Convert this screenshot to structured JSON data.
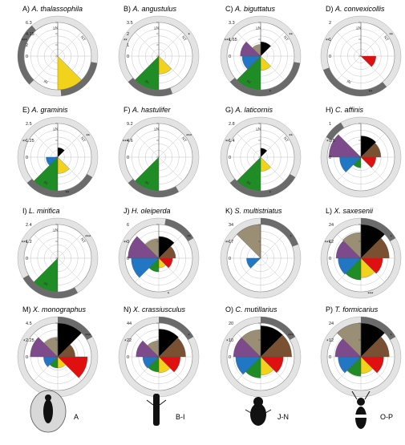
{
  "figure": {
    "legend_groups": [
      {
        "label": "A",
        "icon": "ant-on-bark-icon"
      },
      {
        "label": "B-I",
        "icon": "elongate-beetle-icon"
      },
      {
        "label": "J-N",
        "icon": "bark-beetle-icon"
      },
      {
        "label": "O-P",
        "icon": "checkered-beetle-icon"
      }
    ]
  },
  "colors": {
    "c1": "#000000",
    "c2": "#7a5032",
    "c3": "#e01010",
    "c4": "#f2d21a",
    "c5": "#1f8c26",
    "c6": "#2277c4",
    "c7": "#7d4a8c",
    "c8": "#9a8e74",
    "ring_light": "#e3e3e3",
    "ring_dark": "#6b6b6b"
  },
  "chart_data": [
    {
      "type": "rose",
      "letter": "A)",
      "species": "A. thalassophila",
      "ticks": [
        "6.3",
        "4.15",
        "2",
        "0"
      ],
      "max": 6.3,
      "values": [
        0,
        0,
        0,
        6.3,
        0,
        0,
        0,
        0
      ],
      "sector_labels": [
        "NT",
        "NT",
        "IN"
      ],
      "stars": [
        "***"
      ],
      "dark_arcs": [
        [
          100,
          175
        ],
        [
          225,
          320
        ]
      ]
    },
    {
      "type": "rose",
      "letter": "B)",
      "species": "A. angustulus",
      "ticks": [
        "3.5",
        "2",
        "1",
        "0"
      ],
      "max": 3.5,
      "values": [
        0,
        0,
        0,
        1.0,
        3.5,
        0,
        0,
        0
      ],
      "sector_labels": [
        "NT",
        "NT",
        "IN"
      ],
      "stars": [
        "**",
        "*"
      ],
      "dark_arcs": [
        [
          160,
          230
        ]
      ]
    },
    {
      "type": "rose",
      "letter": "C)",
      "species": "A. biguttatus",
      "ticks": [
        "3.3",
        "1.65",
        "0"
      ],
      "max": 3.3,
      "values": [
        0.6,
        0,
        0,
        0.6,
        3.3,
        1.0,
        1.2,
        0.4
      ],
      "sector_labels": [
        "NT",
        "NT",
        "IN"
      ],
      "stars": [
        "***",
        "**",
        "*"
      ],
      "dark_arcs": [
        [
          100,
          230
        ]
      ]
    },
    {
      "type": "rose",
      "letter": "D)",
      "species": "A. convexicollis",
      "ticks": [
        "2",
        "1",
        "0"
      ],
      "max": 2,
      "values": [
        0,
        0,
        0.4,
        0,
        0,
        0,
        0,
        0
      ],
      "sector_labels": [
        "NT",
        "NT",
        "IN"
      ],
      "stars": [
        "**",
        "**",
        "**"
      ],
      "dark_arcs": [
        [
          140,
          250
        ]
      ]
    },
    {
      "type": "rose",
      "letter": "E)",
      "species": "A. graminis",
      "ticks": [
        "2.5",
        "1.25",
        "0"
      ],
      "max": 2.5,
      "values": [
        0.2,
        0,
        0,
        0.6,
        2.5,
        0.3,
        0,
        0
      ],
      "sector_labels": [
        "NT",
        "NT",
        "IN"
      ],
      "stars": [
        "**",
        "**",
        "**"
      ],
      "dark_arcs": [
        [
          120,
          230
        ]
      ]
    },
    {
      "type": "rose",
      "letter": "F)",
      "species": "A. hastulifer",
      "ticks": [
        "9.2",
        "4.6",
        "0"
      ],
      "max": 9.2,
      "values": [
        0,
        0,
        0,
        0,
        9.2,
        0,
        0,
        0
      ],
      "sector_labels": [
        "NT",
        "NT",
        "IN"
      ],
      "stars": [
        "***",
        "***"
      ],
      "dark_arcs": [
        [
          150,
          230
        ]
      ]
    },
    {
      "type": "rose",
      "letter": "G)",
      "species": "A. laticornis",
      "ticks": [
        "2.8",
        "1.4",
        "0"
      ],
      "max": 2.8,
      "values": [
        0.2,
        0,
        0,
        0.5,
        2.8,
        0,
        0,
        0
      ],
      "sector_labels": [
        "NT",
        "NT",
        "IN"
      ],
      "stars": [
        "**",
        "**",
        "*"
      ],
      "dark_arcs": [
        [
          120,
          230
        ]
      ]
    },
    {
      "type": "rose",
      "letter": "H)",
      "species": "C. affinis",
      "ticks": [
        "1",
        "0.5",
        "0"
      ],
      "max": 1,
      "values": [
        0.4,
        0.35,
        0.2,
        0,
        0.1,
        0.4,
        0.9,
        0
      ],
      "sector_labels": [],
      "stars": [
        "*"
      ],
      "dark_arcs": [
        [
          300,
          330
        ]
      ]
    },
    {
      "type": "rose",
      "letter": "I)",
      "species": "L. mirifica",
      "ticks": [
        "2.4",
        "1.2",
        "0"
      ],
      "max": 2.4,
      "values": [
        0,
        0,
        0,
        0,
        2.4,
        0,
        0,
        0
      ],
      "sector_labels": [
        "NT",
        "NT",
        "IN"
      ],
      "stars": [
        "***",
        "***"
      ],
      "dark_arcs": [
        [
          150,
          240
        ]
      ]
    },
    {
      "type": "rose",
      "letter": "J)",
      "species": "H. oleiperda",
      "ticks": [
        "6",
        "3",
        "0"
      ],
      "max": 6,
      "values": [
        2.5,
        1.5,
        1.0,
        0.5,
        1.0,
        4.0,
        5.0,
        2.0
      ],
      "sector_labels": [],
      "stars": [
        "**",
        "**",
        "*"
      ],
      "dark_arcs": [
        [
          10,
          60
        ]
      ]
    },
    {
      "type": "rose",
      "letter": "K)",
      "species": "S. multistriatus",
      "ticks": [
        "34",
        "17",
        "0"
      ],
      "max": 34,
      "values": [
        0,
        0,
        0,
        0,
        0,
        6,
        0,
        34
      ],
      "sector_labels": [],
      "stars": [
        "**",
        "*"
      ],
      "dark_arcs": [
        [
          0,
          70
        ]
      ]
    },
    {
      "type": "rose",
      "letter": "L)",
      "species": "X. saxesenii",
      "ticks": [
        "24",
        "12",
        "0"
      ],
      "max": 24,
      "values": [
        24,
        17,
        10,
        8,
        10,
        11,
        13,
        14
      ],
      "sector_labels": [],
      "stars": [
        "***",
        "*",
        "***"
      ],
      "dark_arcs": [
        [
          0,
          60
        ]
      ]
    },
    {
      "type": "rose",
      "letter": "M)",
      "species": "X. monographus",
      "ticks": [
        "4.5",
        "2.25",
        "0"
      ],
      "max": 4.5,
      "values": [
        4.5,
        1.2,
        3.5,
        0.5,
        0.5,
        0.8,
        3.0,
        1.5
      ],
      "sector_labels": [],
      "stars": [
        "*",
        "***"
      ],
      "dark_arcs": [
        [
          0,
          60
        ]
      ]
    },
    {
      "type": "rose",
      "letter": "N)",
      "species": "X. crassiusculus",
      "ticks": [
        "44",
        "22",
        "0"
      ],
      "max": 44,
      "values": [
        30,
        28,
        18,
        10,
        9,
        10,
        20,
        10
      ],
      "sector_labels": [],
      "stars": [
        "*",
        "*"
      ],
      "dark_arcs": [
        [
          0,
          60
        ]
      ]
    },
    {
      "type": "rose",
      "letter": "O)",
      "species": "C. mutillarius",
      "ticks": [
        "20",
        "10",
        "0"
      ],
      "max": 20,
      "values": [
        17,
        17,
        9,
        6,
        8,
        11,
        13,
        13
      ],
      "sector_labels": [],
      "stars": [
        "*",
        "***"
      ],
      "dark_arcs": [
        [
          0,
          60
        ]
      ]
    },
    {
      "type": "rose",
      "letter": "P)",
      "species": "T. formicarius",
      "ticks": [
        "24",
        "12",
        "0"
      ],
      "max": 24,
      "values": [
        24,
        17,
        11,
        6,
        8,
        11,
        14,
        24
      ],
      "sector_labels": [],
      "stars": [
        "*",
        "*"
      ],
      "dark_arcs": [
        [
          0,
          60
        ]
      ]
    }
  ]
}
